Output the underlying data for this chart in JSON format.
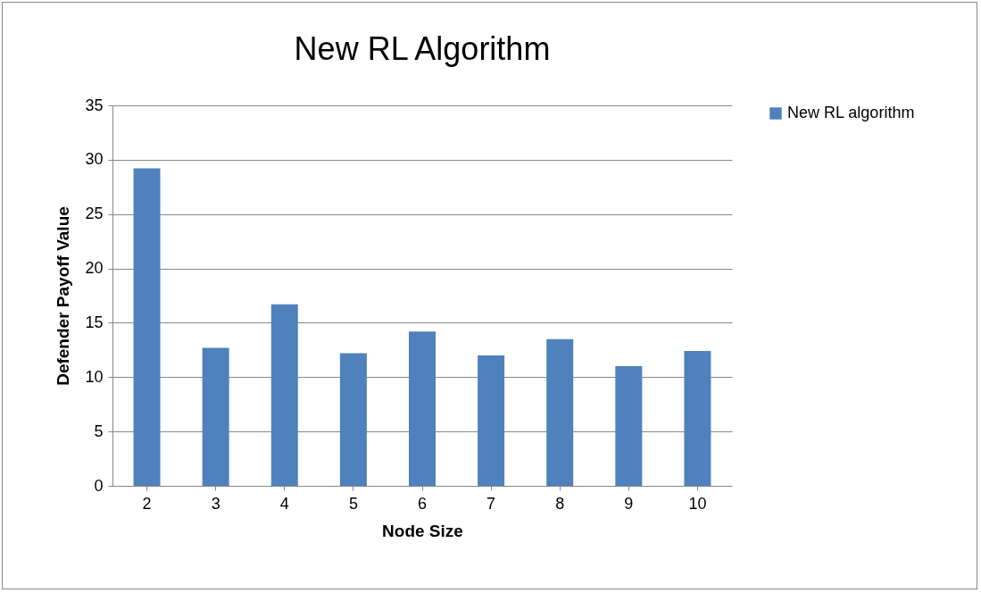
{
  "chart_data": {
    "type": "bar",
    "title": "New RL Algorithm",
    "xlabel": "Node Size",
    "ylabel": "Defender Payoff Value",
    "categories": [
      "2",
      "3",
      "4",
      "5",
      "6",
      "7",
      "8",
      "9",
      "10"
    ],
    "series": [
      {
        "name": "New RL algorithm",
        "color": "#4f81bd",
        "values": [
          29.2,
          12.7,
          16.7,
          12.2,
          14.2,
          12.0,
          13.5,
          11.0,
          12.4
        ]
      }
    ],
    "ylim": [
      0,
      35
    ],
    "yticks": [
      0,
      5,
      10,
      15,
      20,
      25,
      30,
      35
    ],
    "grid": "y",
    "legend": "right"
  }
}
